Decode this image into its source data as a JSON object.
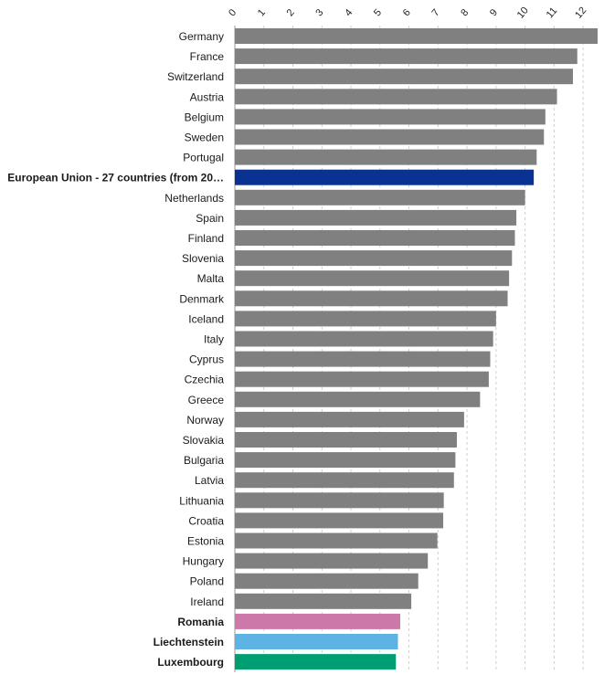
{
  "chart_data": {
    "type": "bar",
    "orientation": "horizontal",
    "title": "",
    "xlabel": "",
    "ylabel": "",
    "xlim": [
      0,
      12.5
    ],
    "ticks": [
      0,
      1,
      2,
      3,
      4,
      5,
      6,
      7,
      8,
      9,
      10,
      11,
      12
    ],
    "tick_labels": [
      "0",
      "1",
      "2",
      "3",
      "4",
      "5",
      "6",
      "7",
      "8",
      "9",
      "10",
      "11",
      "12"
    ],
    "axis_position": "top",
    "grid": true,
    "categories": [
      "Germany",
      "France",
      "Switzerland",
      "Austria",
      "Belgium",
      "Sweden",
      "Portugal",
      "European Union - 27 countries (from 20…",
      "Netherlands",
      "Spain",
      "Finland",
      "Slovenia",
      "Malta",
      "Denmark",
      "Iceland",
      "Italy",
      "Cyprus",
      "Czechia",
      "Greece",
      "Norway",
      "Slovakia",
      "Bulgaria",
      "Latvia",
      "Lithuania",
      "Croatia",
      "Estonia",
      "Hungary",
      "Poland",
      "Ireland",
      "Romania",
      "Liechtenstein",
      "Luxembourg"
    ],
    "values": [
      12.5,
      11.8,
      11.65,
      11.1,
      10.7,
      10.65,
      10.4,
      10.3,
      10.0,
      9.7,
      9.65,
      9.55,
      9.45,
      9.4,
      9.0,
      8.9,
      8.8,
      8.75,
      8.45,
      7.9,
      7.65,
      7.6,
      7.55,
      7.2,
      7.18,
      6.98,
      6.65,
      6.32,
      6.08,
      5.7,
      5.62,
      5.55
    ],
    "bold_categories": [
      "European Union - 27 countries (from 20…",
      "Romania",
      "Liechtenstein",
      "Luxembourg"
    ],
    "colors": {
      "default": "#808080",
      "European Union - 27 countries (from 20…": "#0a3292",
      "Romania": "#cc78a8",
      "Liechtenstein": "#5db3e4",
      "Luxembourg": "#009e73"
    }
  }
}
